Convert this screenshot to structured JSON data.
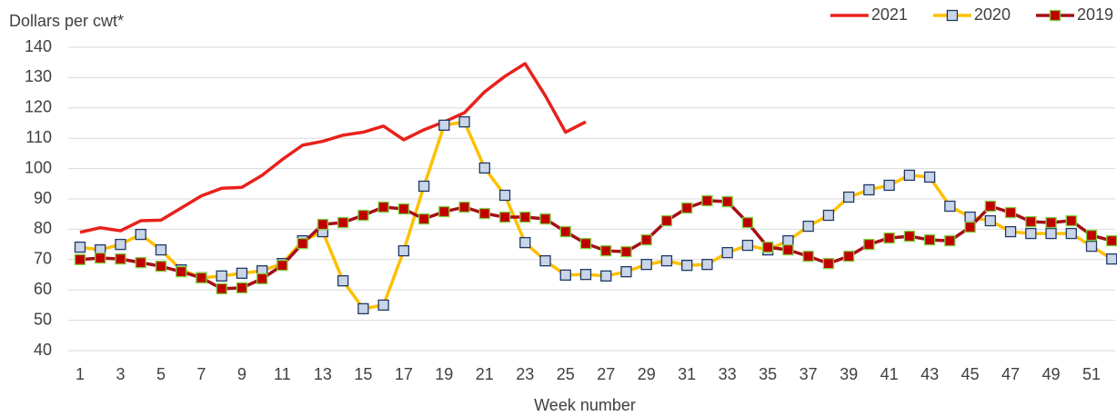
{
  "chart_data": {
    "type": "line",
    "y_label": "Dollars per cwt*",
    "x_label": "Week number",
    "categories": [
      "1",
      null,
      "3",
      null,
      "5",
      null,
      "7",
      null,
      "9",
      null,
      "11",
      null,
      "13",
      null,
      "15",
      null,
      "17",
      null,
      "19",
      null,
      "21",
      null,
      "23",
      null,
      "25",
      null,
      "27",
      null,
      "29",
      null,
      "31",
      null,
      "33",
      null,
      "35",
      null,
      "37",
      null,
      "39",
      null,
      "41",
      null,
      "43",
      null,
      "45",
      null,
      "47",
      null,
      "49",
      null,
      "51",
      null
    ],
    "ylim": [
      40,
      140
    ],
    "yticks": [
      40,
      50,
      60,
      70,
      80,
      90,
      100,
      110,
      120,
      130,
      140
    ],
    "grid": true,
    "legend": "top-right",
    "series": [
      {
        "name": "2021",
        "color": "#e8211c",
        "marker": "none",
        "values": [
          79,
          80.5,
          79.5,
          82.8,
          83,
          87,
          91,
          93.5,
          93.8,
          97.8,
          103,
          107.7,
          109,
          111,
          112,
          114,
          109.5,
          112.8,
          115.4,
          118.4,
          125.3,
          130.4,
          134.6,
          124,
          112,
          115.4,
          null,
          null,
          null,
          null,
          null,
          null,
          null,
          null,
          null,
          null,
          null,
          null,
          null,
          null,
          null,
          null,
          null,
          null,
          null,
          null,
          null,
          null,
          null,
          null,
          null,
          null
        ]
      },
      {
        "name": "2020",
        "color": "#ffc000",
        "marker": "square",
        "marker_fill": "#c9d5e8",
        "marker_edge": "#1f3864",
        "values": [
          74.1,
          73.2,
          75,
          78.3,
          73.2,
          66.6,
          64,
          64.6,
          65.5,
          66.3,
          68.7,
          76.2,
          79.2,
          63,
          53.8,
          55,
          72.9,
          94.2,
          114.3,
          115.4,
          100.2,
          91.2,
          75.6,
          69.6,
          64.9,
          65.1,
          64.6,
          66,
          68.4,
          69.6,
          68.1,
          68.4,
          72.3,
          74.7,
          73.2,
          76.2,
          81,
          84.6,
          90.6,
          93,
          94.5,
          97.8,
          97.2,
          87.6,
          84,
          82.8,
          79.2,
          78.6,
          78.6,
          78.6,
          74.4,
          70.2
        ]
      },
      {
        "name": "2019",
        "color": "#a50f15",
        "marker": "square",
        "marker_fill": "#c00000",
        "marker_edge": "#7fd13b",
        "values": [
          70,
          70.5,
          70.2,
          69,
          67.8,
          66,
          64,
          60.4,
          60.7,
          63.7,
          68.1,
          75.3,
          81.6,
          82.2,
          84.6,
          87.3,
          86.7,
          83.4,
          85.8,
          87.3,
          85.2,
          84,
          84,
          83.4,
          79.2,
          75.3,
          72.9,
          72.6,
          76.5,
          82.8,
          87,
          89.4,
          89.1,
          82.2,
          74.1,
          73.2,
          71.1,
          68.7,
          71.1,
          75,
          77.1,
          77.7,
          76.5,
          76.2,
          80.7,
          87.6,
          85.5,
          82.5,
          82.2,
          82.8,
          78,
          76.2
        ]
      }
    ]
  }
}
